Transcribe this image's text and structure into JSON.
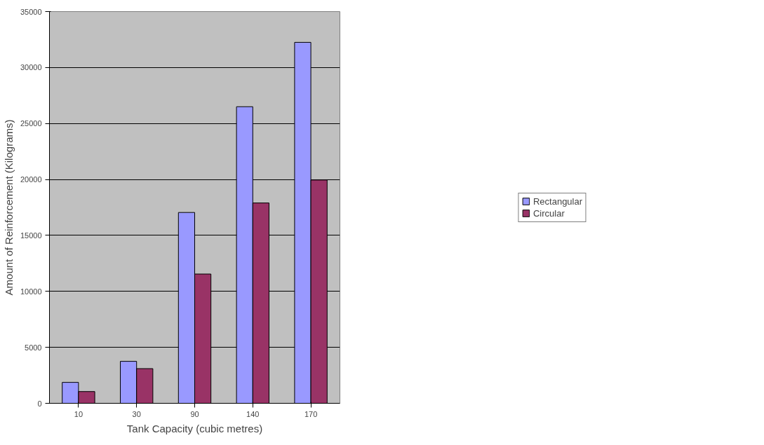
{
  "chart_data": {
    "type": "bar",
    "xlabel": "Tank Capacity (cubic metres)",
    "ylabel": "Amount of Reinforcement (Kilograms)",
    "categories": [
      "10",
      "30",
      "90",
      "140",
      "170"
    ],
    "series": [
      {
        "name": "Rectangular",
        "color": "#9999ff",
        "values": [
          1870,
          3750,
          17050,
          26500,
          32250
        ]
      },
      {
        "name": "Circular",
        "color": "#993366",
        "values": [
          1050,
          3100,
          11550,
          17900,
          19950
        ]
      }
    ],
    "ylim": [
      0,
      35000
    ],
    "yticks": [
      0,
      5000,
      10000,
      15000,
      20000,
      25000,
      30000,
      35000
    ],
    "grid": "y",
    "legend": "right"
  }
}
